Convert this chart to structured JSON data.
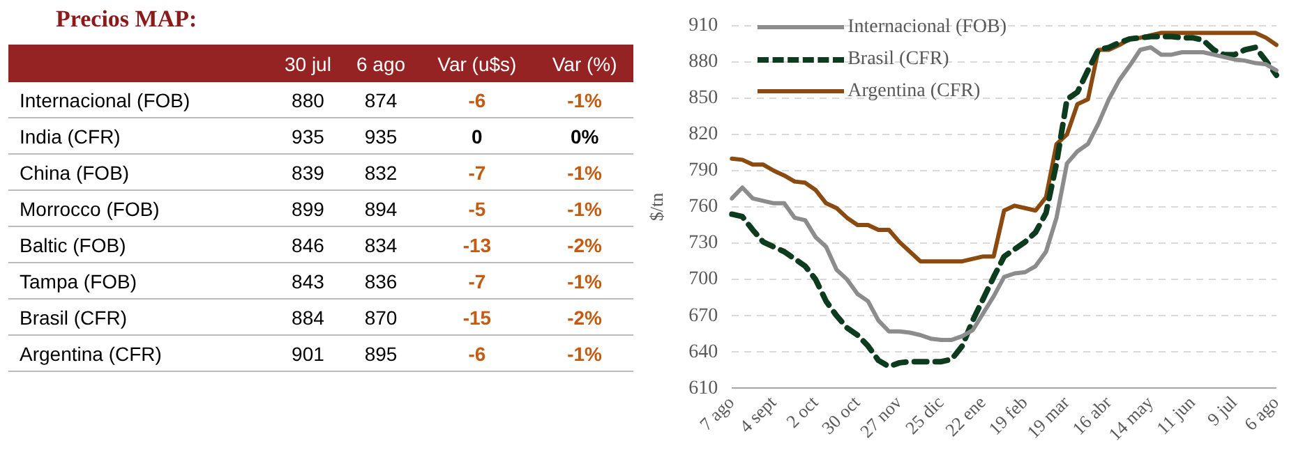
{
  "chart_data": [
    {
      "type": "other",
      "title": "Precios MAP:",
      "categories": [
        "Internacional (FOB)",
        "India (CFR)",
        "China (FOB)",
        "Morrocco (FOB)",
        "Baltic (FOB)",
        "Tampa (FOB)",
        "Brasil (CFR)",
        "Argentina (CFR)"
      ],
      "series": [
        {
          "name": "30 jul",
          "values": [
            880,
            935,
            839,
            899,
            846,
            843,
            884,
            901
          ]
        },
        {
          "name": "6 ago",
          "values": [
            874,
            935,
            832,
            894,
            834,
            836,
            870,
            895
          ]
        },
        {
          "name": "Var (u$s)",
          "values": [
            -6,
            0,
            -7,
            -5,
            -13,
            -7,
            -15,
            -6
          ]
        },
        {
          "name": "Var (%)",
          "values": [
            -1,
            0,
            -1,
            -1,
            -2,
            -1,
            -2,
            -1
          ],
          "value_labels": [
            "-1%",
            "0%",
            "-1%",
            "-1%",
            "-2%",
            "-1%",
            "-2%",
            "-1%"
          ]
        }
      ],
      "data_labels": true
    },
    {
      "type": "line",
      "ylabel": "$/tn",
      "categories": [
        "7 ago",
        null,
        null,
        null,
        "4 sept",
        null,
        null,
        null,
        "2 oct",
        null,
        null,
        null,
        "30 oct",
        null,
        null,
        null,
        "27 nov",
        null,
        null,
        null,
        "25 dic",
        null,
        null,
        null,
        "22 ene",
        null,
        null,
        null,
        "19 feb",
        null,
        null,
        null,
        "19 mar",
        null,
        null,
        null,
        "16 abr",
        null,
        null,
        null,
        "14 may",
        null,
        null,
        null,
        "11 jun",
        null,
        null,
        null,
        "9 jul",
        null,
        null,
        null,
        "6 ago"
      ],
      "series": [
        {
          "name": "Internacional (FOB)",
          "color": "#8c8c8c",
          "line_style": "solid",
          "values": [
            767,
            776,
            767,
            765,
            763,
            763,
            751,
            749,
            735,
            727,
            708,
            700,
            688,
            682,
            666,
            657,
            657,
            656,
            654,
            651,
            650,
            650,
            653,
            658,
            672,
            686,
            702,
            705,
            706,
            711,
            723,
            751,
            796,
            806,
            812,
            829,
            849,
            865,
            877,
            890,
            892,
            886,
            886,
            888,
            888,
            888,
            886,
            884,
            882,
            881,
            879,
            878,
            873
          ]
        },
        {
          "name": "Brasil (CFR)",
          "color": "#0d3b1e",
          "line_style": "dashed",
          "values": [
            754,
            752,
            741,
            731,
            727,
            723,
            717,
            711,
            700,
            682,
            670,
            660,
            654,
            645,
            633,
            628,
            631,
            632,
            632,
            632,
            632,
            634,
            645,
            666,
            684,
            702,
            719,
            725,
            731,
            739,
            755,
            796,
            849,
            855,
            873,
            890,
            892,
            896,
            899,
            900,
            901,
            901,
            901,
            900,
            900,
            898,
            890,
            886,
            886,
            890,
            892,
            881,
            869
          ]
        },
        {
          "name": "Argentina (CFR)",
          "color": "#8b4a0f",
          "line_style": "solid",
          "values": [
            800,
            799,
            795,
            795,
            790,
            786,
            781,
            780,
            774,
            763,
            759,
            751,
            745,
            745,
            741,
            741,
            731,
            723,
            715,
            715,
            715,
            715,
            715,
            717,
            719,
            719,
            757,
            761,
            759,
            757,
            768,
            812,
            820,
            845,
            849,
            890,
            890,
            894,
            899,
            900,
            902,
            904,
            904,
            904,
            904,
            904,
            904,
            904,
            904,
            904,
            904,
            900,
            894
          ]
        }
      ],
      "ylim": [
        610,
        910
      ],
      "yticks": [
        610,
        640,
        670,
        700,
        730,
        760,
        790,
        820,
        850,
        880,
        910
      ],
      "grid": "y",
      "legend": "top left",
      "marker": "none"
    }
  ]
}
